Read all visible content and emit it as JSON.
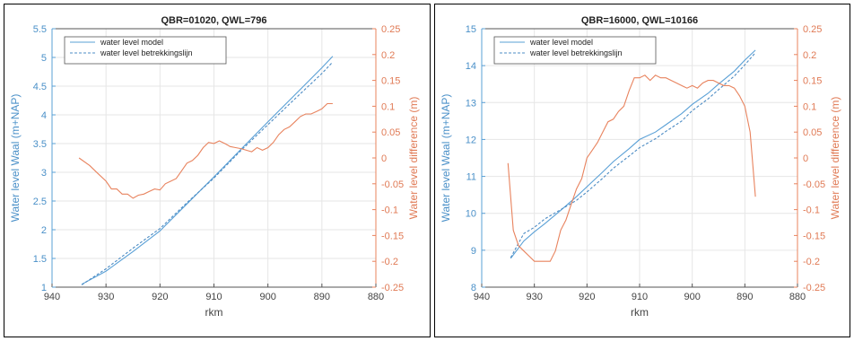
{
  "chart_data": [
    {
      "type": "line",
      "title": "QBR=01020, QWL=796",
      "xlabel": "rkm",
      "ylabel_left": "Water level Waal (m+NAP)",
      "ylabel_right": "Water level difference (m)",
      "xlim": [
        940,
        880
      ],
      "ylim_left": [
        1,
        5.5
      ],
      "ylim_right": [
        -0.25,
        0.25
      ],
      "x_ticks": [
        "940",
        "930",
        "920",
        "910",
        "900",
        "890",
        "880"
      ],
      "y_left_ticks": [
        "1",
        "1.5",
        "2",
        "2.5",
        "3",
        "3.5",
        "4",
        "4.5",
        "5",
        "5.5"
      ],
      "y_right_ticks": [
        "-0.25",
        "-0.2",
        "-0.15",
        "-0.1",
        "-0.05",
        "0",
        "0.05",
        "0.1",
        "0.15",
        "0.2",
        "0.25"
      ],
      "grid": true,
      "legend_position": "top-left",
      "colors": {
        "model": "#5aa0d6",
        "betrekkingslijn": "#4d8cc4",
        "difference": "#e8835e"
      },
      "series": [
        {
          "name": "water level model",
          "axis": "left",
          "style": "solid",
          "x": [
            934.5,
            930,
            925,
            920,
            915,
            910,
            905,
            900,
            895,
            890,
            888
          ],
          "y": [
            1.05,
            1.28,
            1.62,
            1.98,
            2.45,
            2.92,
            3.4,
            3.88,
            4.35,
            4.82,
            5.02
          ]
        },
        {
          "name": "water level betrekkingslijn",
          "axis": "left",
          "style": "dashed",
          "x": [
            934.5,
            930,
            925,
            920,
            915,
            910,
            905,
            900,
            895,
            890,
            888
          ],
          "y": [
            1.04,
            1.32,
            1.68,
            2.02,
            2.47,
            2.9,
            3.38,
            3.83,
            4.28,
            4.72,
            4.92
          ]
        },
        {
          "axis": "right",
          "style": "solid",
          "x": [
            935,
            933,
            931.5,
            930,
            929,
            928,
            927,
            926,
            925,
            924,
            923,
            922,
            921,
            920,
            919,
            918,
            917,
            916,
            915,
            914,
            913,
            912,
            911,
            910,
            909,
            908,
            907,
            906,
            905,
            904,
            903,
            902,
            901,
            900,
            899,
            898,
            897,
            896,
            895,
            894,
            893,
            892,
            891,
            890,
            889,
            888
          ],
          "y": [
            0.0,
            -0.015,
            -0.03,
            -0.045,
            -0.06,
            -0.06,
            -0.07,
            -0.07,
            -0.078,
            -0.072,
            -0.07,
            -0.065,
            -0.06,
            -0.062,
            -0.05,
            -0.045,
            -0.04,
            -0.025,
            -0.01,
            -0.005,
            0.005,
            0.02,
            0.03,
            0.028,
            0.033,
            0.028,
            0.022,
            0.02,
            0.018,
            0.015,
            0.012,
            0.02,
            0.015,
            0.02,
            0.03,
            0.045,
            0.055,
            0.06,
            0.07,
            0.08,
            0.085,
            0.085,
            0.09,
            0.095,
            0.105,
            0.105
          ]
        }
      ]
    },
    {
      "type": "line",
      "title": "QBR=16000, QWL=10166",
      "xlabel": "rkm",
      "ylabel_left": "Water level Waal (m+NAP)",
      "ylabel_right": "Water level difference (m)",
      "xlim": [
        940,
        880
      ],
      "ylim_left": [
        8,
        15
      ],
      "ylim_right": [
        -0.25,
        0.25
      ],
      "x_ticks": [
        "940",
        "930",
        "920",
        "910",
        "900",
        "890",
        "880"
      ],
      "y_left_ticks": [
        "8",
        "9",
        "10",
        "11",
        "12",
        "13",
        "14",
        "15"
      ],
      "y_right_ticks": [
        "-0.25",
        "-0.2",
        "-0.15",
        "-0.1",
        "-0.05",
        "0",
        "0.05",
        "0.1",
        "0.15",
        "0.2",
        "0.25"
      ],
      "grid": true,
      "legend_position": "top-left",
      "colors": {
        "model": "#5aa0d6",
        "betrekkingslijn": "#4d8cc4",
        "difference": "#e8835e"
      },
      "series": [
        {
          "name": "water level model",
          "axis": "left",
          "style": "solid",
          "x": [
            934.5,
            932,
            930,
            928,
            925,
            922,
            920,
            917,
            915,
            912,
            910,
            907,
            905,
            902,
            900,
            897,
            895,
            892,
            890,
            888
          ],
          "y": [
            8.78,
            9.25,
            9.5,
            9.72,
            10.08,
            10.45,
            10.72,
            11.12,
            11.4,
            11.75,
            12.0,
            12.2,
            12.4,
            12.7,
            12.95,
            13.25,
            13.5,
            13.85,
            14.15,
            14.42
          ]
        },
        {
          "name": "water level betrekkingslijn",
          "axis": "left",
          "style": "dashed",
          "x": [
            934.5,
            932,
            930,
            928,
            925,
            922,
            920,
            917,
            915,
            912,
            910,
            907,
            905,
            902,
            900,
            897,
            895,
            892,
            890,
            888
          ],
          "y": [
            8.8,
            9.45,
            9.62,
            9.85,
            10.1,
            10.35,
            10.58,
            10.95,
            11.22,
            11.55,
            11.78,
            12.02,
            12.22,
            12.5,
            12.78,
            13.1,
            13.35,
            13.72,
            14.02,
            14.35
          ]
        },
        {
          "axis": "right",
          "style": "solid",
          "x": [
            935,
            934,
            933,
            932,
            931,
            930,
            929,
            928,
            927,
            926,
            925,
            924,
            923,
            922,
            921,
            920,
            919,
            918,
            917,
            916,
            915,
            914,
            913,
            912,
            911,
            910,
            909,
            908,
            907,
            906,
            905,
            904,
            903,
            902,
            901,
            900,
            899,
            898,
            897,
            896,
            895,
            894,
            893,
            892,
            891,
            890,
            889,
            888
          ],
          "y": [
            -0.01,
            -0.14,
            -0.17,
            -0.18,
            -0.19,
            -0.2,
            -0.2,
            -0.2,
            -0.2,
            -0.18,
            -0.14,
            -0.12,
            -0.09,
            -0.06,
            -0.04,
            0.0,
            0.015,
            0.03,
            0.05,
            0.07,
            0.075,
            0.09,
            0.1,
            0.13,
            0.155,
            0.155,
            0.16,
            0.15,
            0.16,
            0.155,
            0.155,
            0.15,
            0.145,
            0.14,
            0.135,
            0.14,
            0.135,
            0.145,
            0.15,
            0.15,
            0.145,
            0.14,
            0.14,
            0.135,
            0.12,
            0.1,
            0.05,
            -0.075
          ]
        }
      ]
    }
  ]
}
